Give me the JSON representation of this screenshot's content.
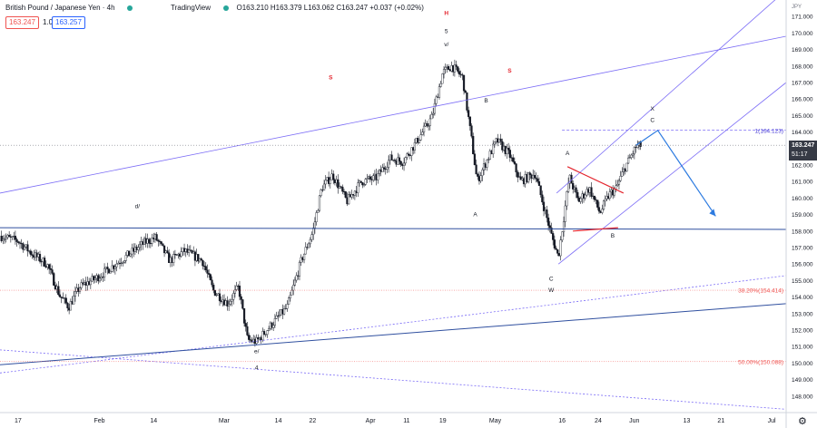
{
  "header": {
    "symbol": "British Pound / Japanese Yen · 4h",
    "brand": "TradingView",
    "ohlc": "O163.210 H163.379 L163.062 C163.247 +0.037 (+0.02%)",
    "bid": "163.247",
    "qty": "1.0",
    "ask": "163.257"
  },
  "price_axis": {
    "currency": "JPY",
    "last_price": "163.247",
    "countdown": "51:17"
  },
  "colors": {
    "up": "#e8e8e8",
    "down": "#131722",
    "channel": "#7b6cf6",
    "trend": "#2f4f9f",
    "fib": "#ef5350",
    "triangle": "#e4262f",
    "arrow": "#2d7be0",
    "wave_red": "#e4262f"
  },
  "chart_data": {
    "type": "candlestick",
    "title": "",
    "y_range": [
      147,
      172
    ],
    "y_ticks": [
      "148.000",
      "149.000",
      "150.000",
      "151.000",
      "152.000",
      "153.000",
      "154.000",
      "155.000",
      "156.000",
      "157.000",
      "158.000",
      "159.000",
      "160.000",
      "161.000",
      "162.000",
      "163.000",
      "164.000",
      "165.000",
      "166.000",
      "167.000",
      "168.000",
      "169.000",
      "170.000",
      "171.000"
    ],
    "x_ticks": [
      {
        "x": 0.2,
        "label": "17"
      },
      {
        "x": 4.7,
        "label": "Feb"
      },
      {
        "x": 7.7,
        "label": "14"
      },
      {
        "x": 11.6,
        "label": "Mar"
      },
      {
        "x": 14.6,
        "label": "14"
      },
      {
        "x": 16.5,
        "label": "22"
      },
      {
        "x": 19.7,
        "label": "Apr"
      },
      {
        "x": 21.7,
        "label": "11"
      },
      {
        "x": 23.7,
        "label": "19"
      },
      {
        "x": 26.6,
        "label": "May"
      },
      {
        "x": 30.3,
        "label": "16"
      },
      {
        "x": 32.3,
        "label": "24"
      },
      {
        "x": 34.3,
        "label": "Jun"
      },
      {
        "x": 37.2,
        "label": "13"
      },
      {
        "x": 39.1,
        "label": "21"
      },
      {
        "x": 41.9,
        "label": "Jul"
      }
    ],
    "x_range": [
      -0.8,
      42.7
    ],
    "price_path": [
      [
        -0.8,
        157.7
      ],
      [
        0.2,
        157.4
      ],
      [
        1,
        156.6
      ],
      [
        1.8,
        156
      ],
      [
        2.5,
        154.1
      ],
      [
        3,
        153.4
      ],
      [
        3.6,
        154.6
      ],
      [
        4.6,
        155.2
      ],
      [
        5.6,
        156
      ],
      [
        6.6,
        156.8
      ],
      [
        7.2,
        157.3
      ],
      [
        7.8,
        157.6
      ],
      [
        8.6,
        156.2
      ],
      [
        9.4,
        156.8
      ],
      [
        10.4,
        156.2
      ],
      [
        11,
        154.4
      ],
      [
        11.8,
        153.6
      ],
      [
        12.4,
        154.6
      ],
      [
        12.9,
        151.4
      ],
      [
        13.4,
        151.3
      ],
      [
        14.2,
        152.3
      ],
      [
        15.1,
        153.4
      ],
      [
        15.9,
        156.3
      ],
      [
        16.5,
        157.9
      ],
      [
        17,
        160.6
      ],
      [
        17.6,
        161.4
      ],
      [
        18.4,
        159.8
      ],
      [
        19.2,
        161
      ],
      [
        20,
        161.2
      ],
      [
        20.8,
        162.4
      ],
      [
        21.5,
        162.2
      ],
      [
        22.3,
        163.5
      ],
      [
        23.1,
        164.9
      ],
      [
        23.7,
        167.6
      ],
      [
        24.2,
        168
      ],
      [
        24.8,
        167.3
      ],
      [
        25.3,
        163.5
      ],
      [
        25.6,
        161
      ],
      [
        26.1,
        162.2
      ],
      [
        26.7,
        163.5
      ],
      [
        27.4,
        162.6
      ],
      [
        28,
        161
      ],
      [
        28.8,
        161.5
      ],
      [
        29.7,
        157.8
      ],
      [
        30.1,
        156.4
      ],
      [
        30.7,
        161.3
      ],
      [
        31.2,
        159.8
      ],
      [
        31.8,
        160.6
      ],
      [
        32.4,
        159.1
      ],
      [
        32.9,
        160.2
      ],
      [
        33.3,
        160.6
      ],
      [
        33.8,
        161.9
      ],
      [
        34.4,
        163.1
      ],
      [
        34.7,
        163.2
      ]
    ],
    "trendlines": [
      {
        "kind": "channel-upper",
        "points": [
          [
            -0.8,
            160.3
          ],
          [
            42.7,
            169.8
          ]
        ]
      },
      {
        "kind": "channel-lower",
        "points": [
          [
            -0.8,
            149.4
          ],
          [
            42.7,
            155.3
          ]
        ]
      },
      {
        "kind": "outer-lower",
        "points": [
          [
            -0.8,
            150.8
          ],
          [
            42.7,
            147.2
          ]
        ]
      },
      {
        "kind": "trend-main",
        "points": [
          [
            -0.8,
            149.9
          ],
          [
            42.7,
            153.6
          ]
        ]
      },
      {
        "kind": "horizontal",
        "points": [
          [
            -0.8,
            158.2
          ],
          [
            42.7,
            158.1
          ]
        ]
      },
      {
        "kind": "rising-channel-upper",
        "points": [
          [
            30,
            160.3
          ],
          [
            42.7,
            172.6
          ]
        ]
      },
      {
        "kind": "rising-channel-lower",
        "points": [
          [
            30.1,
            156
          ],
          [
            42.7,
            167
          ]
        ]
      }
    ],
    "horizontal_levels": [
      {
        "price": 164.123,
        "label": "1(164.123)"
      },
      {
        "price": 154.414,
        "label": "38.20%(154.414)"
      },
      {
        "price": 150.088,
        "label": "50.00%(150.088)"
      }
    ],
    "projection": [
      [
        34.4,
        163.2
      ],
      [
        35.6,
        164.1
      ],
      [
        38.8,
        158.9
      ]
    ],
    "wave_labels": [
      {
        "x": 23.9,
        "y": 171.1,
        "text": "H",
        "color": "red"
      },
      {
        "x": 23.9,
        "y": 170.0,
        "text": "5",
        "color": "black"
      },
      {
        "x": 23.9,
        "y": 169.2,
        "text": "v/",
        "color": "black"
      },
      {
        "x": 17.5,
        "y": 167.2,
        "text": "S",
        "color": "red"
      },
      {
        "x": 27.4,
        "y": 167.6,
        "text": "S",
        "color": "red"
      },
      {
        "x": 26.1,
        "y": 165.8,
        "text": "B",
        "color": "black"
      },
      {
        "x": 25.5,
        "y": 158.9,
        "text": "A",
        "color": "black"
      },
      {
        "x": 6.8,
        "y": 159.4,
        "text": "d/",
        "color": "black"
      },
      {
        "x": 13.4,
        "y": 150.6,
        "text": "e/",
        "color": "black"
      },
      {
        "x": 13.4,
        "y": 149.6,
        "text": "4",
        "color": "black"
      },
      {
        "x": 29.7,
        "y": 155.0,
        "text": "C",
        "color": "black"
      },
      {
        "x": 29.7,
        "y": 154.3,
        "text": "W",
        "color": "black"
      },
      {
        "x": 30.6,
        "y": 162.6,
        "text": "A",
        "color": "black"
      },
      {
        "x": 33.1,
        "y": 157.6,
        "text": "B",
        "color": "black"
      },
      {
        "x": 35.3,
        "y": 165.3,
        "text": "X",
        "color": "black"
      },
      {
        "x": 35.3,
        "y": 164.6,
        "text": "C",
        "color": "black"
      }
    ]
  }
}
